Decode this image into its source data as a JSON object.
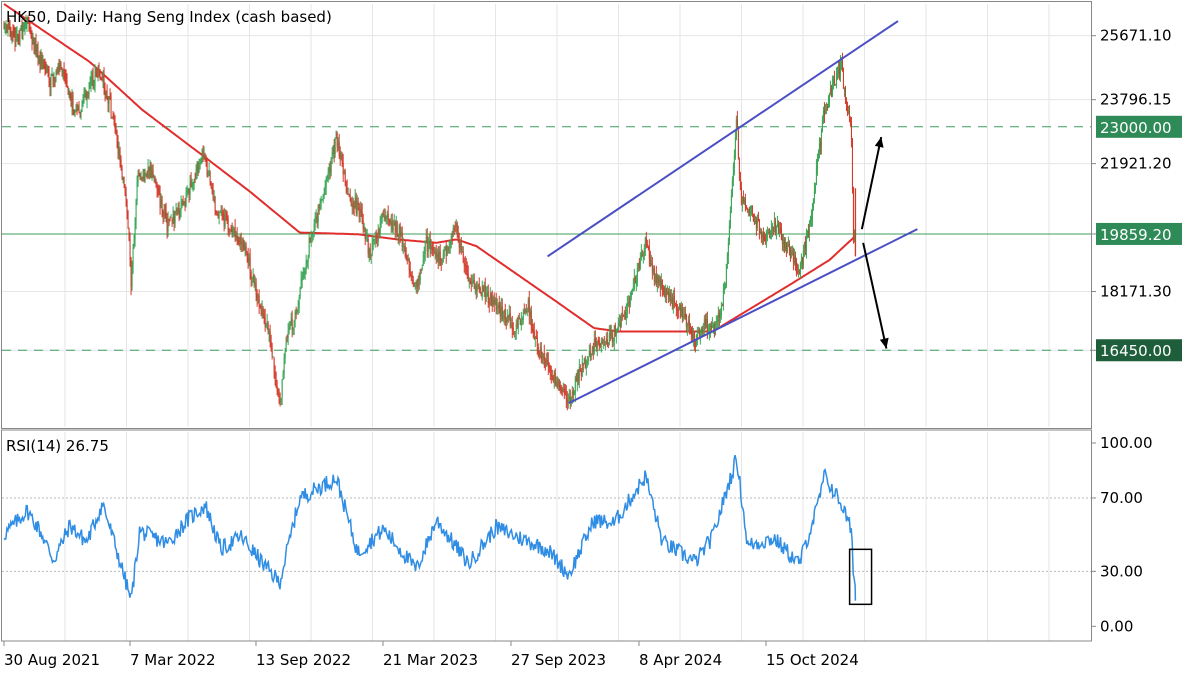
{
  "chart_data": [
    {
      "type": "candlestick",
      "title": "HK50, Daily:  Hang Seng Index (cash based)",
      "y_ticks": [
        25671.1,
        23796.15,
        21921.2,
        19859.2,
        18171.3,
        16450.0
      ],
      "y_tick_labels": [
        "25671.10",
        "23796.15",
        "21921.20",
        "19859.20",
        "18171.30",
        "16450.00"
      ],
      "ylim": [
        14200,
        26600
      ],
      "x_tick_labels": [
        "30 Aug 2021",
        "7 Mar 2022",
        "13 Sep 2022",
        "21 Mar 2023",
        "27 Sep 2023",
        "8 Apr 2024",
        "15 Oct 2024"
      ],
      "price_path": [
        [
          "2021-08-30",
          26000
        ],
        [
          "2021-09-15",
          25500
        ],
        [
          "2021-10-05",
          25900
        ],
        [
          "2021-10-20",
          25200
        ],
        [
          "2021-11-10",
          24300
        ],
        [
          "2021-11-25",
          24800
        ],
        [
          "2021-12-20",
          23300
        ],
        [
          "2022-01-10",
          24200
        ],
        [
          "2022-01-25",
          24600
        ],
        [
          "2022-02-10",
          23700
        ],
        [
          "2022-02-25",
          22100
        ],
        [
          "2022-03-08",
          20800
        ],
        [
          "2022-03-15",
          18400
        ],
        [
          "2022-03-25",
          21600
        ],
        [
          "2022-04-15",
          21700
        ],
        [
          "2022-05-10",
          20100
        ],
        [
          "2022-05-25",
          20400
        ],
        [
          "2022-06-15",
          21200
        ],
        [
          "2022-07-05",
          22300
        ],
        [
          "2022-07-25",
          20500
        ],
        [
          "2022-08-15",
          20100
        ],
        [
          "2022-09-05",
          19600
        ],
        [
          "2022-09-25",
          18100
        ],
        [
          "2022-10-15",
          16900
        ],
        [
          "2022-10-31",
          14700
        ],
        [
          "2022-11-10",
          16800
        ],
        [
          "2022-11-25",
          17500
        ],
        [
          "2022-12-15",
          19500
        ],
        [
          "2023-01-10",
          21300
        ],
        [
          "2023-01-27",
          22700
        ],
        [
          "2023-02-15",
          21000
        ],
        [
          "2023-03-05",
          20500
        ],
        [
          "2023-03-20",
          19200
        ],
        [
          "2023-04-10",
          20400
        ],
        [
          "2023-05-05",
          19900
        ],
        [
          "2023-05-31",
          18300
        ],
        [
          "2023-06-15",
          19600
        ],
        [
          "2023-07-10",
          19100
        ],
        [
          "2023-07-31",
          20100
        ],
        [
          "2023-08-20",
          18400
        ],
        [
          "2023-09-10",
          18200
        ],
        [
          "2023-09-27",
          17800
        ],
        [
          "2023-10-15",
          17500
        ],
        [
          "2023-10-31",
          17100
        ],
        [
          "2023-11-20",
          17800
        ],
        [
          "2023-12-05",
          16500
        ],
        [
          "2024-01-22",
          14900
        ],
        [
          "2024-02-10",
          15900
        ],
        [
          "2024-03-05",
          16700
        ],
        [
          "2024-03-20",
          16700
        ],
        [
          "2024-04-08",
          17100
        ],
        [
          "2024-04-20",
          17600
        ],
        [
          "2024-05-20",
          19600
        ],
        [
          "2024-06-05",
          18500
        ],
        [
          "2024-06-30",
          17900
        ],
        [
          "2024-07-20",
          17400
        ],
        [
          "2024-08-05",
          16700
        ],
        [
          "2024-08-20",
          17200
        ],
        [
          "2024-09-05",
          17100
        ],
        [
          "2024-09-20",
          18200
        ],
        [
          "2024-10-08",
          23200
        ],
        [
          "2024-10-15",
          20800
        ],
        [
          "2024-10-31",
          20500
        ],
        [
          "2024-11-20",
          19700
        ],
        [
          "2024-12-05",
          20100
        ],
        [
          "2024-12-31",
          19300
        ],
        [
          "2025-01-13",
          18700
        ],
        [
          "2025-01-31",
          20300
        ],
        [
          "2025-02-21",
          23500
        ],
        [
          "2025-03-07",
          24200
        ],
        [
          "2025-03-19",
          24800
        ],
        [
          "2025-03-27",
          23700
        ],
        [
          "2025-04-03",
          23200
        ],
        [
          "2025-04-07",
          19800
        ],
        [
          "2025-04-09",
          20300
        ],
        [
          "2025-04-10",
          19859.2
        ]
      ],
      "ma_path": [
        [
          "2021-08-30",
          26600
        ],
        [
          "2022-01-10",
          24900
        ],
        [
          "2022-04-01",
          23500
        ],
        [
          "2022-07-01",
          22200
        ],
        [
          "2022-09-15",
          21100
        ],
        [
          "2022-12-01",
          19900
        ],
        [
          "2023-03-01",
          19850
        ],
        [
          "2023-05-01",
          19700
        ],
        [
          "2023-07-01",
          19600
        ],
        [
          "2023-08-01",
          19700
        ],
        [
          "2023-09-01",
          19500
        ],
        [
          "2023-11-01",
          18700
        ],
        [
          "2024-01-01",
          17900
        ],
        [
          "2024-03-01",
          17100
        ],
        [
          "2024-04-08",
          17000
        ],
        [
          "2024-08-01",
          17000
        ],
        [
          "2024-09-01",
          17000
        ],
        [
          "2024-11-01",
          17700
        ],
        [
          "2025-01-01",
          18400
        ],
        [
          "2025-03-01",
          19100
        ],
        [
          "2025-04-10",
          19800
        ]
      ],
      "horizontal_levels": [
        {
          "value": 23000.0,
          "label": "23000.00",
          "style": "dashed",
          "color": "#3c9c5a",
          "label_bg": "#2e8b57"
        },
        {
          "value": 19859.2,
          "label": "19859.20",
          "style": "solid",
          "color": "#3c9c5a",
          "label_bg": "#2e8b57"
        },
        {
          "value": 16450.0,
          "label": "16450.00",
          "style": "dashed",
          "color": "#3c9c5a",
          "label_bg": "#1e5e3b"
        }
      ],
      "trendlines": [
        {
          "from": [
            "2023-12-20",
            19200
          ],
          "to": [
            "2025-06-15",
            26100
          ],
          "color": "#4a4fc4"
        },
        {
          "from": [
            "2024-01-22",
            14900
          ],
          "to": [
            "2025-07-15",
            20000
          ],
          "color": "#4a4fc4"
        }
      ],
      "arrows": [
        {
          "from": [
            "2025-04-20",
            20000
          ],
          "to": [
            "2025-05-20",
            22700
          ],
          "color": "#000000"
        },
        {
          "from": [
            "2025-04-22",
            19600
          ],
          "to": [
            "2025-05-28",
            16500
          ],
          "color": "#000000"
        }
      ],
      "colors": {
        "bull": "#3aa657",
        "bear": "#d23a2a",
        "ma": "#e02e2e",
        "grid": "#e6e6e6"
      }
    },
    {
      "type": "line",
      "title": "RSI(14) 26.75",
      "y_ticks": [
        100,
        70,
        30,
        0
      ],
      "y_tick_labels": [
        "100.00",
        "70.00",
        "30.00",
        "0.00"
      ],
      "ylim": [
        -8,
        106
      ],
      "levels": [
        70,
        30
      ],
      "rsi_path": [
        [
          "2021-08-30",
          50
        ],
        [
          "2021-10-05",
          63
        ],
        [
          "2021-10-25",
          52
        ],
        [
          "2021-11-15",
          36
        ],
        [
          "2021-12-10",
          55
        ],
        [
          "2022-01-05",
          46
        ],
        [
          "2022-01-30",
          67
        ],
        [
          "2022-02-25",
          36
        ],
        [
          "2022-03-15",
          14
        ],
        [
          "2022-03-28",
          52
        ],
        [
          "2022-05-10",
          45
        ],
        [
          "2022-06-10",
          58
        ],
        [
          "2022-07-08",
          66
        ],
        [
          "2022-08-01",
          42
        ],
        [
          "2022-09-01",
          49
        ],
        [
          "2022-10-10",
          32
        ],
        [
          "2022-10-31",
          24
        ],
        [
          "2022-12-01",
          70
        ],
        [
          "2023-01-27",
          81
        ],
        [
          "2023-03-01",
          40
        ],
        [
          "2023-04-10",
          53
        ],
        [
          "2023-05-31",
          31
        ],
        [
          "2023-07-01",
          58
        ],
        [
          "2023-08-20",
          34
        ],
        [
          "2023-10-01",
          54
        ],
        [
          "2023-11-15",
          47
        ],
        [
          "2023-12-20",
          42
        ],
        [
          "2024-01-22",
          28
        ],
        [
          "2024-03-01",
          58
        ],
        [
          "2024-04-01",
          56
        ],
        [
          "2024-05-20",
          82
        ],
        [
          "2024-06-15",
          46
        ],
        [
          "2024-08-05",
          35
        ],
        [
          "2024-09-01",
          49
        ],
        [
          "2024-10-08",
          92
        ],
        [
          "2024-10-25",
          44
        ],
        [
          "2024-12-05",
          48
        ],
        [
          "2025-01-13",
          34
        ],
        [
          "2025-02-10",
          65
        ],
        [
          "2025-02-21",
          82
        ],
        [
          "2025-03-19",
          67
        ],
        [
          "2025-03-31",
          56
        ],
        [
          "2025-04-04",
          50
        ],
        [
          "2025-04-07",
          26.75
        ],
        [
          "2025-04-10",
          26.75
        ]
      ],
      "highlight_box": {
        "from": [
          "2025-04-01",
          42
        ],
        "to": [
          "2025-05-05",
          12
        ],
        "color": "#000000"
      },
      "color": "#2f8de4"
    }
  ]
}
